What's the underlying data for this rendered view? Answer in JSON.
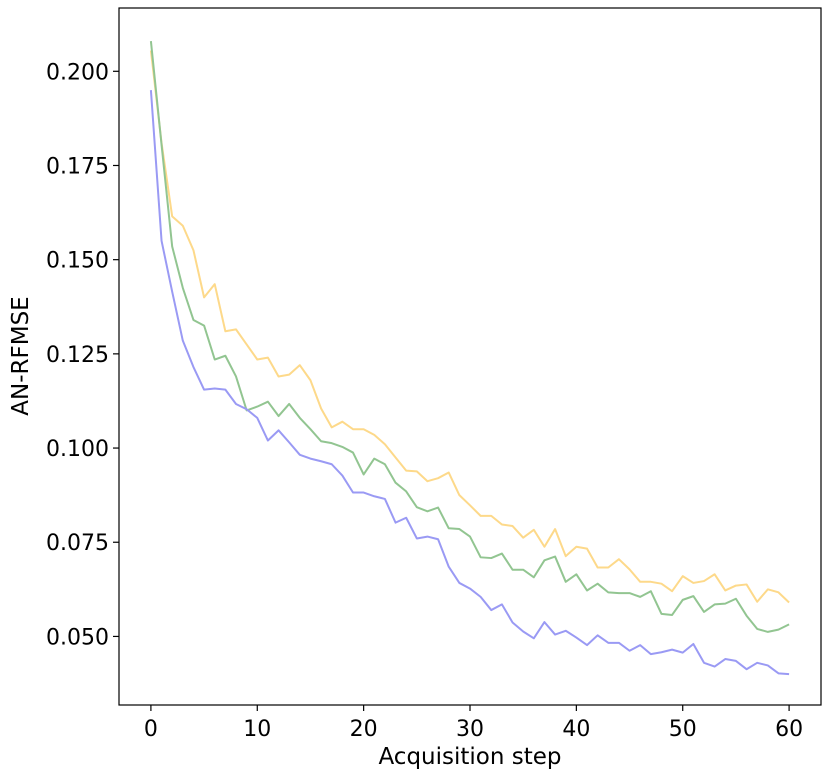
{
  "chart_data": {
    "type": "line",
    "title": "",
    "xlabel": "Acquisition step",
    "ylabel": "AN-RFMSE",
    "xlim": [
      -3,
      63
    ],
    "ylim": [
      0.0318,
      0.2168
    ],
    "xticks": [
      0,
      10,
      20,
      30,
      40,
      50,
      60
    ],
    "xtick_labels": [
      "0",
      "10",
      "20",
      "30",
      "40",
      "50",
      "60"
    ],
    "yticks": [
      0.05,
      0.075,
      0.1,
      0.125,
      0.15,
      0.175,
      0.2
    ],
    "ytick_labels": [
      "0.050",
      "0.075",
      "0.100",
      "0.125",
      "0.150",
      "0.175",
      "0.200"
    ],
    "grid": false,
    "legend": "none",
    "x": [
      0,
      1,
      2,
      3,
      4,
      5,
      6,
      7,
      8,
      9,
      10,
      11,
      12,
      13,
      14,
      15,
      16,
      17,
      18,
      19,
      20,
      21,
      22,
      23,
      24,
      25,
      26,
      27,
      28,
      29,
      30,
      31,
      32,
      33,
      34,
      35,
      36,
      37,
      38,
      39,
      40,
      41,
      42,
      43,
      44,
      45,
      46,
      47,
      48,
      49,
      50,
      51,
      52,
      53,
      54,
      55,
      56,
      57,
      58,
      59,
      60
    ],
    "series": [
      {
        "color": "#fdd98a",
        "values": [
          0.2055,
          0.181,
          0.1615,
          0.159,
          0.1525,
          0.14,
          0.1435,
          0.131,
          0.1315,
          0.1275,
          0.1235,
          0.124,
          0.119,
          0.1195,
          0.122,
          0.118,
          0.1105,
          0.1055,
          0.107,
          0.105,
          0.105,
          0.1035,
          0.101,
          0.0975,
          0.094,
          0.0938,
          0.0912,
          0.092,
          0.0935,
          0.0875,
          0.0848,
          0.082,
          0.082,
          0.0797,
          0.0793,
          0.0762,
          0.0783,
          0.0738,
          0.0785,
          0.0713,
          0.0738,
          0.0733,
          0.0683,
          0.0683,
          0.0705,
          0.0678,
          0.0645,
          0.0645,
          0.064,
          0.062,
          0.066,
          0.0642,
          0.0647,
          0.0665,
          0.0622,
          0.0635,
          0.0638,
          0.0592,
          0.0625,
          0.0617,
          0.059
        ]
      },
      {
        "color": "#92c591",
        "values": [
          0.208,
          0.1805,
          0.1535,
          0.1425,
          0.134,
          0.1325,
          0.1235,
          0.1245,
          0.119,
          0.11,
          0.111,
          0.1123,
          0.1085,
          0.1117,
          0.108,
          0.105,
          0.1018,
          0.1013,
          0.1003,
          0.0988,
          0.093,
          0.0972,
          0.0957,
          0.0908,
          0.0885,
          0.0843,
          0.0832,
          0.0842,
          0.0787,
          0.0785,
          0.0765,
          0.071,
          0.0708,
          0.072,
          0.0677,
          0.0677,
          0.0657,
          0.0702,
          0.0712,
          0.0645,
          0.0665,
          0.0622,
          0.064,
          0.0617,
          0.0615,
          0.0615,
          0.0605,
          0.062,
          0.056,
          0.0557,
          0.0597,
          0.0607,
          0.0565,
          0.0585,
          0.0587,
          0.06,
          0.0555,
          0.052,
          0.0512,
          0.0518,
          0.0532
        ]
      },
      {
        "color": "#9a9af4",
        "values": [
          0.195,
          0.155,
          0.1415,
          0.1285,
          0.1215,
          0.1155,
          0.1158,
          0.1155,
          0.1117,
          0.1103,
          0.108,
          0.102,
          0.1047,
          0.1015,
          0.0982,
          0.0972,
          0.0965,
          0.0957,
          0.0927,
          0.0882,
          0.0882,
          0.0872,
          0.0865,
          0.0802,
          0.0815,
          0.076,
          0.0765,
          0.0758,
          0.0685,
          0.0642,
          0.0627,
          0.0605,
          0.057,
          0.0585,
          0.0537,
          0.0513,
          0.0495,
          0.0538,
          0.0505,
          0.0515,
          0.0497,
          0.0477,
          0.0503,
          0.0483,
          0.0483,
          0.0462,
          0.0477,
          0.0453,
          0.0458,
          0.0465,
          0.0457,
          0.048,
          0.043,
          0.042,
          0.044,
          0.0435,
          0.0413,
          0.043,
          0.0423,
          0.0402,
          0.04
        ]
      }
    ]
  }
}
